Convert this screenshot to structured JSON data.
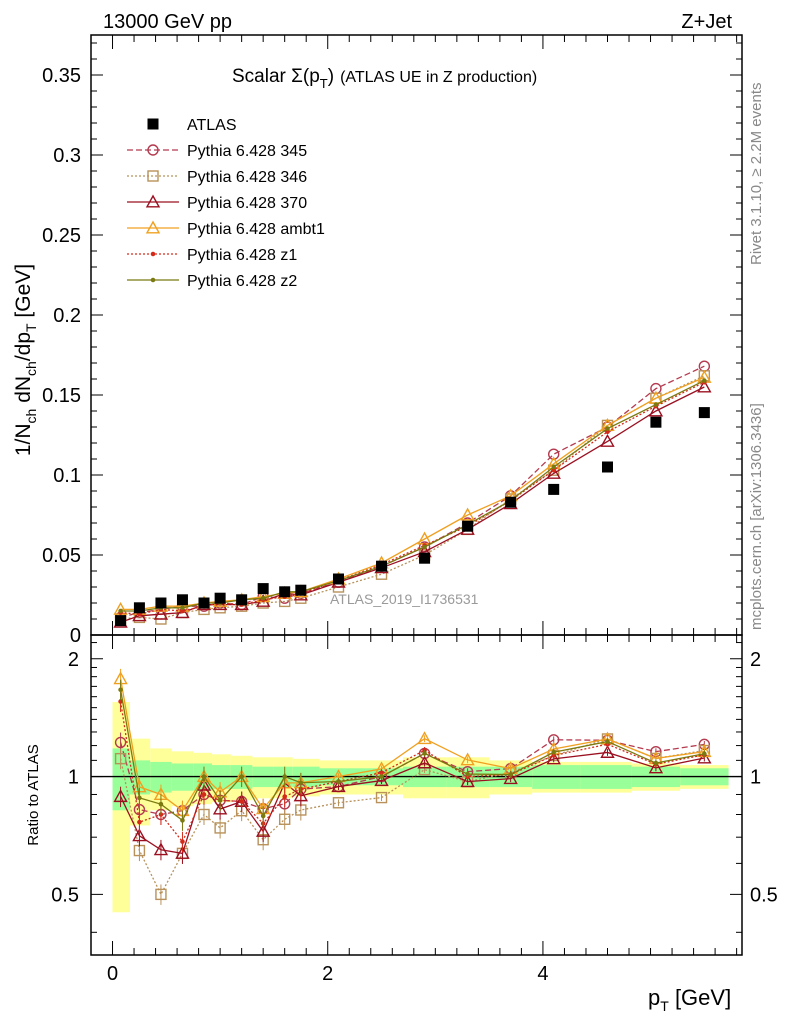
{
  "header": {
    "left": "13000 GeV pp",
    "right": "Z+Jet"
  },
  "side": {
    "rivet": "Rivet 3.1.10, ≥ 2.2M events",
    "mcplots": "mcplots.cern.ch [arXiv:1306.3436]"
  },
  "chart_data": {
    "type": "line",
    "title_main": "Scalar Σ(p",
    "title_sub": "T",
    "title_close": ")",
    "title_extra": "(ATLAS UE in Z production)",
    "watermark": "ATLAS_2019_I1736531",
    "xlabel": "p",
    "xlabel_sub": "T",
    "xlabel_unit": "[GeV]",
    "ylabel": "1/N_ch dN_ch/dp_T [GeV]",
    "ratio_ylabel": "Ratio to ATLAS",
    "xlim": [
      -0.2,
      5.85
    ],
    "ylim": [
      0,
      0.375
    ],
    "ratio_ylim": [
      0.35,
      2.3
    ],
    "x_ticks": [
      0,
      2,
      4
    ],
    "y_ticks": [
      "0",
      "0.05",
      "0.1",
      "0.15",
      "0.2",
      "0.25",
      "0.3",
      "0.35"
    ],
    "ratio_ticks": [
      "0.5",
      "1",
      "2"
    ],
    "x": [
      0.075,
      0.25,
      0.45,
      0.65,
      0.85,
      1.0,
      1.2,
      1.4,
      1.6,
      1.75,
      2.1,
      2.5,
      2.9,
      3.3,
      3.7,
      4.1,
      4.6,
      5.05,
      5.5
    ],
    "data": {
      "name": "ATLAS",
      "values": [
        0.009,
        0.017,
        0.02,
        0.022,
        0.02,
        0.023,
        0.022,
        0.029,
        0.027,
        0.028,
        0.035,
        0.043,
        0.048,
        0.068,
        0.083,
        0.091,
        0.105,
        0.133,
        0.139
      ]
    },
    "band_inner": [
      0.18,
      0.1,
      0.09,
      0.08,
      0.08,
      0.07,
      0.07,
      0.06,
      0.06,
      0.06,
      0.05,
      0.05,
      0.06,
      0.06,
      0.06,
      0.07,
      0.07,
      0.06,
      0.05
    ],
    "band_outer": [
      0.55,
      0.25,
      0.18,
      0.16,
      0.15,
      0.14,
      0.13,
      0.12,
      0.12,
      0.11,
      0.1,
      0.1,
      0.12,
      0.12,
      0.1,
      0.09,
      0.09,
      0.08,
      0.07
    ],
    "series": [
      {
        "name": "Pythia 6.428 345",
        "color": "#b43a4f",
        "dash": "6,3",
        "marker": "circle",
        "values": [
          0.011,
          0.014,
          0.016,
          0.018,
          0.018,
          0.02,
          0.019,
          0.024,
          0.023,
          0.026,
          0.033,
          0.043,
          0.055,
          0.07,
          0.087,
          0.113,
          0.13,
          0.154,
          0.168
        ]
      },
      {
        "name": "Pythia 6.428 346",
        "color": "#b8925a",
        "dash": "2,2",
        "marker": "square",
        "values": [
          0.01,
          0.011,
          0.01,
          0.014,
          0.016,
          0.017,
          0.018,
          0.02,
          0.021,
          0.023,
          0.03,
          0.038,
          0.05,
          0.066,
          0.085,
          0.103,
          0.131,
          0.148,
          0.162
        ]
      },
      {
        "name": "Pythia 6.428 370",
        "color": "#9b1021",
        "dash": "",
        "marker": "triangle",
        "values": [
          0.008,
          0.012,
          0.013,
          0.014,
          0.019,
          0.019,
          0.019,
          0.021,
          0.026,
          0.025,
          0.033,
          0.042,
          0.052,
          0.066,
          0.082,
          0.101,
          0.121,
          0.14,
          0.155
        ]
      },
      {
        "name": "Pythia 6.428 ambt1",
        "color": "#f0a020",
        "dash": "",
        "marker": "triangle",
        "values": [
          0.016,
          0.016,
          0.018,
          0.018,
          0.02,
          0.021,
          0.022,
          0.024,
          0.026,
          0.027,
          0.035,
          0.045,
          0.06,
          0.075,
          0.087,
          0.107,
          0.131,
          0.148,
          0.161
        ]
      },
      {
        "name": "Pythia 6.428 z1",
        "color": "#d42a1a",
        "dash": "2,2",
        "marker": "dot",
        "values": [
          0.014,
          0.013,
          0.016,
          0.015,
          0.018,
          0.02,
          0.019,
          0.022,
          0.024,
          0.026,
          0.034,
          0.044,
          0.056,
          0.068,
          0.084,
          0.103,
          0.127,
          0.143,
          0.158
        ]
      },
      {
        "name": "Pythia 6.428 z2",
        "color": "#7a7a10",
        "dash": "",
        "marker": "dot",
        "values": [
          0.015,
          0.015,
          0.017,
          0.017,
          0.02,
          0.02,
          0.022,
          0.023,
          0.027,
          0.027,
          0.034,
          0.043,
          0.055,
          0.069,
          0.084,
          0.105,
          0.129,
          0.144,
          0.159
        ]
      }
    ]
  }
}
